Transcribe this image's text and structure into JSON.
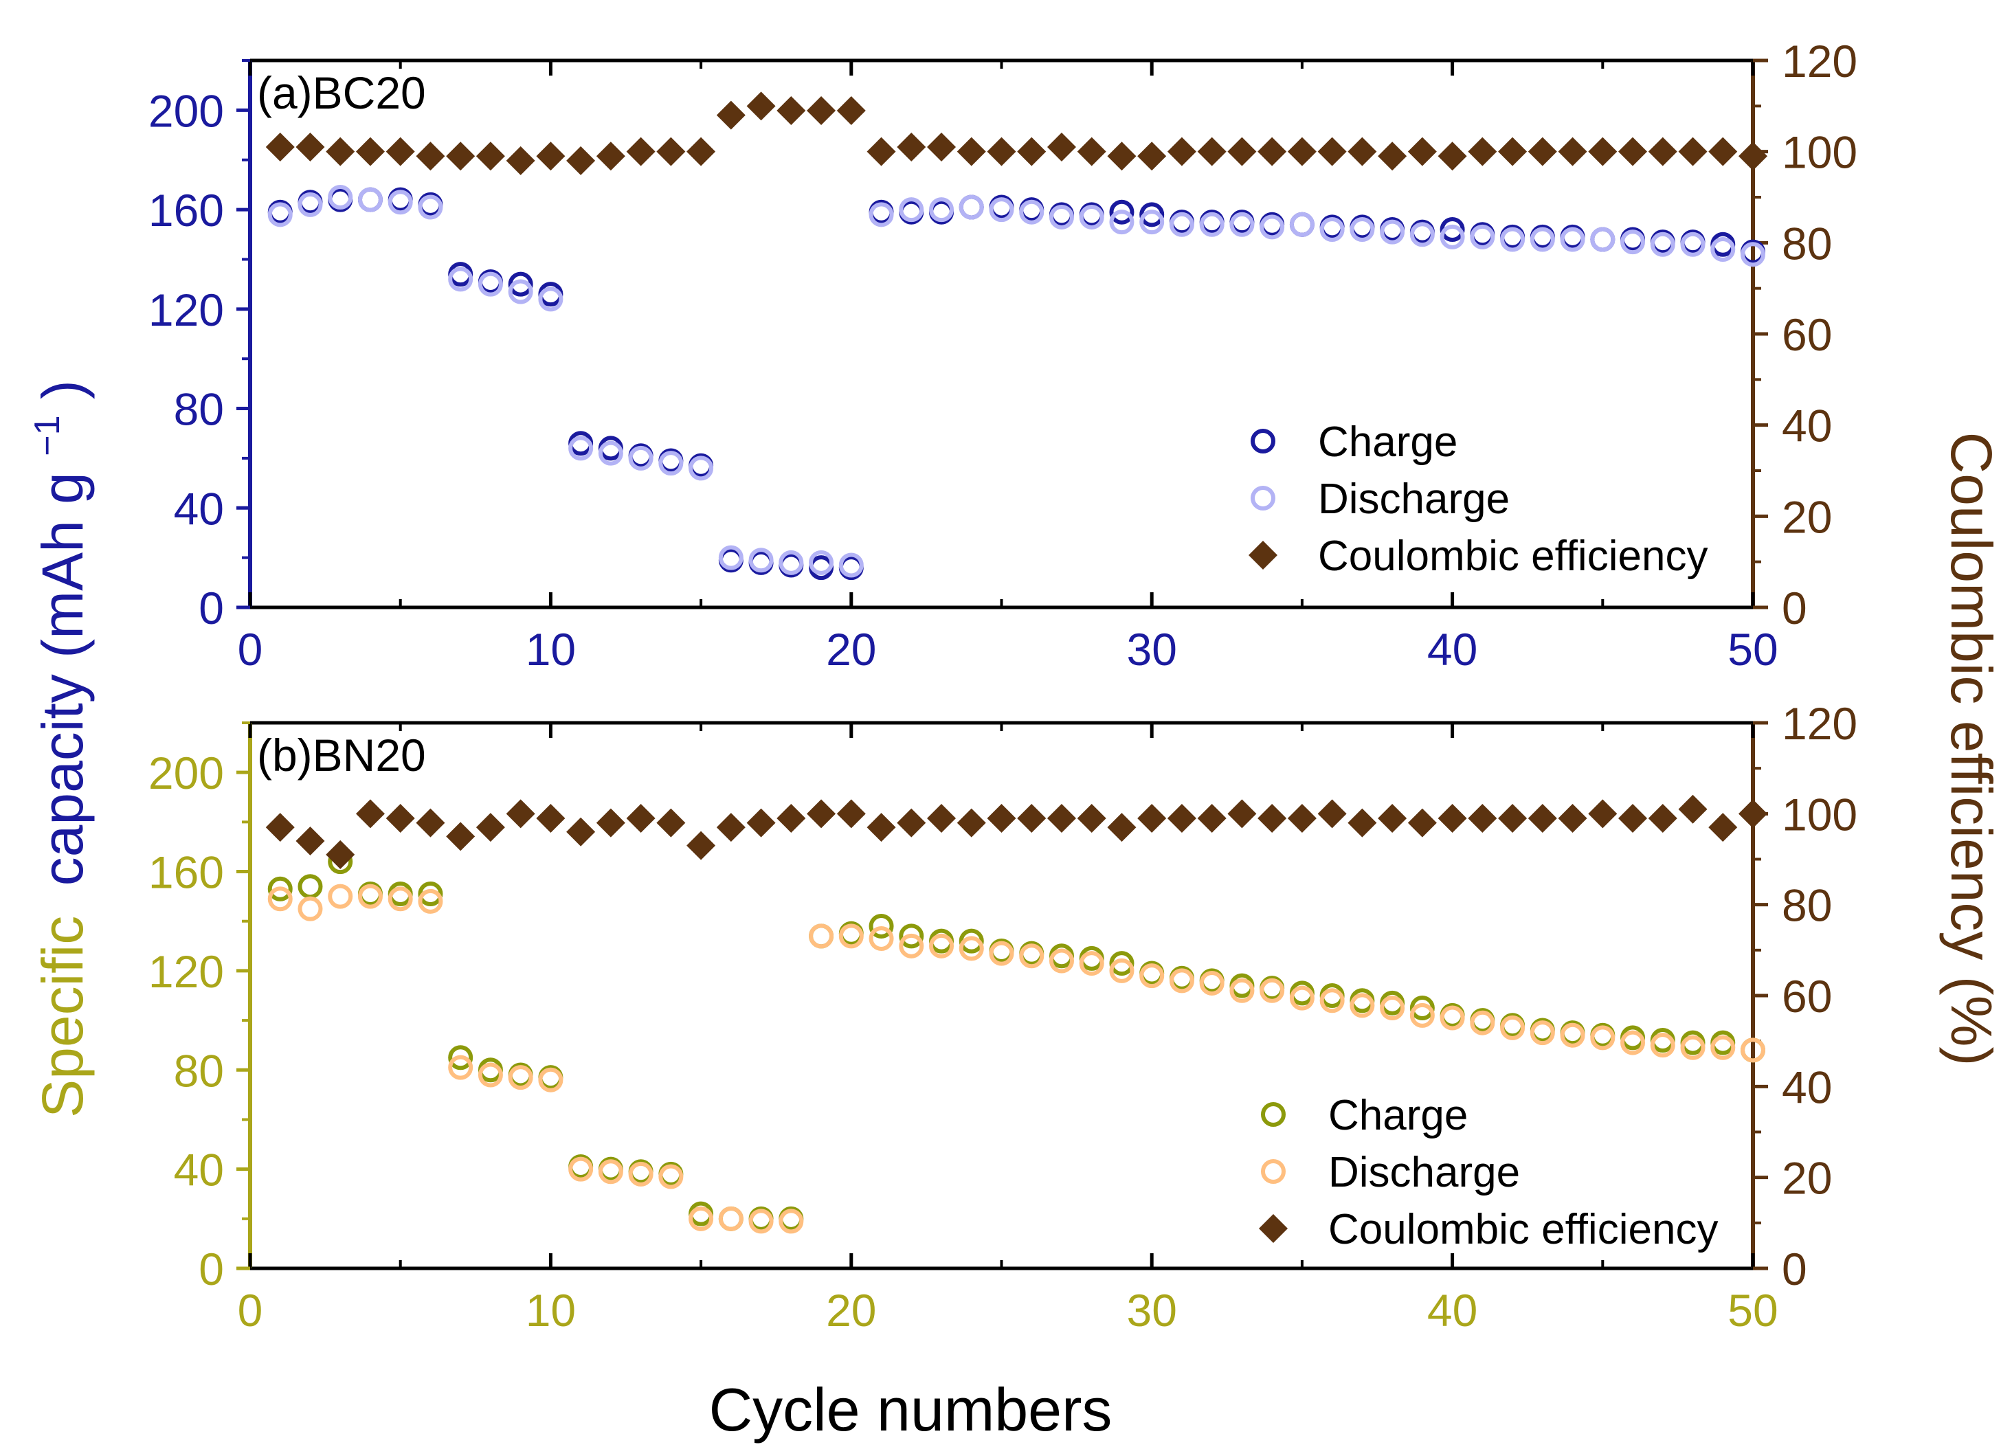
{
  "figure": {
    "shared_xlabel": "Cycle numbers",
    "left_ylabel_part1": "Specific",
    "left_ylabel_part2": "capacity (mAh g",
    "left_ylabel_sup": "−1",
    "left_ylabel_close": ")",
    "right_ylabel": "Coulombic efficiency (%)"
  },
  "colors": {
    "charge_a": "#1a1a9e",
    "discharge_a": "#b3b3f5",
    "charge_b": "#8c9a0b",
    "discharge_b": "#ffbf80",
    "efficiency": "#5c3310",
    "axis_a": "#1a1a9e",
    "axis_b": "#aaa61a",
    "axis_right": "#5c3310"
  },
  "chart_data": [
    {
      "type": "scatter",
      "title": "(a)BC20",
      "xlabel": "Cycle numbers",
      "ylabel": "Specific capacity (mAh g−1)",
      "y2label": "Coulombic efficiency (%)",
      "xlim": [
        0,
        50
      ],
      "ylim": [
        0,
        220
      ],
      "y2lim": [
        0,
        120
      ],
      "xticks": [
        0,
        10,
        20,
        30,
        40,
        50
      ],
      "yticks": [
        0,
        40,
        80,
        120,
        160,
        200
      ],
      "y2ticks": [
        0,
        20,
        40,
        60,
        80,
        100,
        120
      ],
      "legend_position": "bottom-right",
      "legend": [
        "Charge",
        "Discharge",
        "Coulombic efficiency"
      ],
      "series": [
        {
          "name": "Charge",
          "axis": "left",
          "marker": "open-circle",
          "x": [
            1,
            2,
            3,
            4,
            5,
            6,
            7,
            8,
            9,
            10,
            11,
            12,
            13,
            14,
            15,
            16,
            17,
            18,
            19,
            20,
            21,
            22,
            23,
            24,
            25,
            26,
            27,
            28,
            29,
            30,
            31,
            32,
            33,
            34,
            35,
            36,
            37,
            38,
            39,
            40,
            41,
            42,
            43,
            44,
            45,
            46,
            47,
            48,
            49,
            50
          ],
          "values": [
            159,
            163,
            164,
            164,
            164,
            162,
            134,
            131,
            130,
            126,
            66,
            64,
            61,
            59,
            57,
            19,
            18,
            17,
            16,
            16,
            159,
            159,
            159,
            161,
            161,
            160,
            158,
            158,
            159,
            158,
            155,
            155,
            155,
            154,
            154,
            153,
            153,
            152,
            151,
            152,
            150,
            149,
            149,
            149,
            148,
            148,
            147,
            147,
            146,
            143
          ]
        },
        {
          "name": "Discharge",
          "axis": "left",
          "marker": "open-circle",
          "x": [
            1,
            2,
            3,
            4,
            5,
            6,
            7,
            8,
            9,
            10,
            11,
            12,
            13,
            14,
            15,
            16,
            17,
            18,
            19,
            20,
            21,
            22,
            23,
            24,
            25,
            26,
            27,
            28,
            29,
            30,
            31,
            32,
            33,
            34,
            35,
            36,
            37,
            38,
            39,
            40,
            41,
            42,
            43,
            44,
            45,
            46,
            47,
            48,
            49,
            50
          ],
          "values": [
            158,
            162,
            165,
            164,
            163,
            161,
            132,
            130,
            127,
            124,
            64,
            62,
            60,
            58,
            56,
            20,
            19,
            18,
            18,
            17,
            158,
            160,
            160,
            161,
            160,
            159,
            157,
            157,
            155,
            155,
            154,
            154,
            154,
            153,
            154,
            152,
            152,
            151,
            150,
            149,
            149,
            148,
            148,
            148,
            148,
            147,
            146,
            146,
            144,
            142
          ]
        },
        {
          "name": "Coulombic efficiency",
          "axis": "right",
          "marker": "filled-diamond",
          "x": [
            1,
            2,
            3,
            4,
            5,
            6,
            7,
            8,
            9,
            10,
            11,
            12,
            13,
            14,
            15,
            16,
            17,
            18,
            19,
            20,
            21,
            22,
            23,
            24,
            25,
            26,
            27,
            28,
            29,
            30,
            31,
            32,
            33,
            34,
            35,
            36,
            37,
            38,
            39,
            40,
            41,
            42,
            43,
            44,
            45,
            46,
            47,
            48,
            49,
            50
          ],
          "values": [
            101,
            101,
            100,
            100,
            100,
            99,
            99,
            99,
            98,
            99,
            98,
            99,
            100,
            100,
            100,
            108,
            110,
            109,
            109,
            109,
            100,
            101,
            101,
            100,
            100,
            100,
            101,
            100,
            99,
            99,
            100,
            100,
            100,
            100,
            100,
            100,
            100,
            99,
            100,
            99,
            100,
            100,
            100,
            100,
            100,
            100,
            100,
            100,
            100,
            99
          ]
        }
      ]
    },
    {
      "type": "scatter",
      "title": "(b)BN20",
      "xlabel": "Cycle numbers",
      "ylabel": "Specific capacity (mAh g−1)",
      "y2label": "Coulombic efficiency (%)",
      "xlim": [
        0,
        50
      ],
      "ylim": [
        0,
        220
      ],
      "y2lim": [
        0,
        120
      ],
      "xticks": [
        0,
        10,
        20,
        30,
        40,
        50
      ],
      "yticks": [
        0,
        40,
        80,
        120,
        160,
        200
      ],
      "y2ticks": [
        0,
        20,
        40,
        60,
        80,
        100,
        120
      ],
      "legend_position": "bottom-right",
      "legend": [
        "Charge",
        "Discharge",
        "Coulombic efficiency"
      ],
      "series": [
        {
          "name": "Charge",
          "axis": "left",
          "marker": "open-circle",
          "x": [
            1,
            2,
            3,
            4,
            5,
            6,
            7,
            8,
            9,
            10,
            11,
            12,
            13,
            14,
            15,
            16,
            17,
            18,
            19,
            20,
            21,
            22,
            23,
            24,
            25,
            26,
            27,
            28,
            29,
            30,
            31,
            32,
            33,
            34,
            35,
            36,
            37,
            38,
            39,
            40,
            41,
            42,
            43,
            44,
            45,
            46,
            47,
            48,
            49,
            50
          ],
          "values": [
            153,
            154,
            164,
            151,
            151,
            151,
            85,
            80,
            78,
            77,
            41,
            40,
            39,
            38,
            22,
            20,
            20,
            20,
            134,
            135,
            138,
            134,
            132,
            132,
            128,
            127,
            126,
            125,
            123,
            119,
            117,
            116,
            114,
            113,
            111,
            110,
            108,
            107,
            105,
            102,
            100,
            98,
            96,
            95,
            94,
            93,
            92,
            91,
            91,
            88
          ]
        },
        {
          "name": "Discharge",
          "axis": "left",
          "marker": "open-circle",
          "x": [
            1,
            2,
            3,
            4,
            5,
            6,
            7,
            8,
            9,
            10,
            11,
            12,
            13,
            14,
            15,
            16,
            17,
            18,
            19,
            20,
            21,
            22,
            23,
            24,
            25,
            26,
            27,
            28,
            29,
            30,
            31,
            32,
            33,
            34,
            35,
            36,
            37,
            38,
            39,
            40,
            41,
            42,
            43,
            44,
            45,
            46,
            47,
            48,
            49,
            50
          ],
          "values": [
            149,
            145,
            150,
            150,
            149,
            148,
            81,
            78,
            77,
            76,
            40,
            39,
            38,
            37,
            20,
            20,
            19,
            19,
            134,
            134,
            133,
            130,
            130,
            129,
            127,
            126,
            124,
            123,
            120,
            118,
            116,
            115,
            112,
            112,
            109,
            108,
            106,
            105,
            102,
            101,
            99,
            97,
            95,
            94,
            93,
            91,
            90,
            89,
            89,
            88
          ]
        },
        {
          "name": "Coulombic efficiency",
          "axis": "right",
          "marker": "filled-diamond",
          "x": [
            1,
            2,
            3,
            4,
            5,
            6,
            7,
            8,
            9,
            10,
            11,
            12,
            13,
            14,
            15,
            16,
            17,
            18,
            19,
            20,
            21,
            22,
            23,
            24,
            25,
            26,
            27,
            28,
            29,
            30,
            31,
            32,
            33,
            34,
            35,
            36,
            37,
            38,
            39,
            40,
            41,
            42,
            43,
            44,
            45,
            46,
            47,
            48,
            49,
            50
          ],
          "values": [
            97,
            94,
            91,
            100,
            99,
            98,
            95,
            97,
            100,
            99,
            96,
            98,
            99,
            98,
            93,
            97,
            98,
            99,
            100,
            100,
            97,
            98,
            99,
            98,
            99,
            99,
            99,
            99,
            97,
            99,
            99,
            99,
            100,
            99,
            99,
            100,
            98,
            99,
            98,
            99,
            99,
            99,
            99,
            99,
            100,
            99,
            99,
            101,
            97,
            100
          ]
        }
      ]
    }
  ]
}
